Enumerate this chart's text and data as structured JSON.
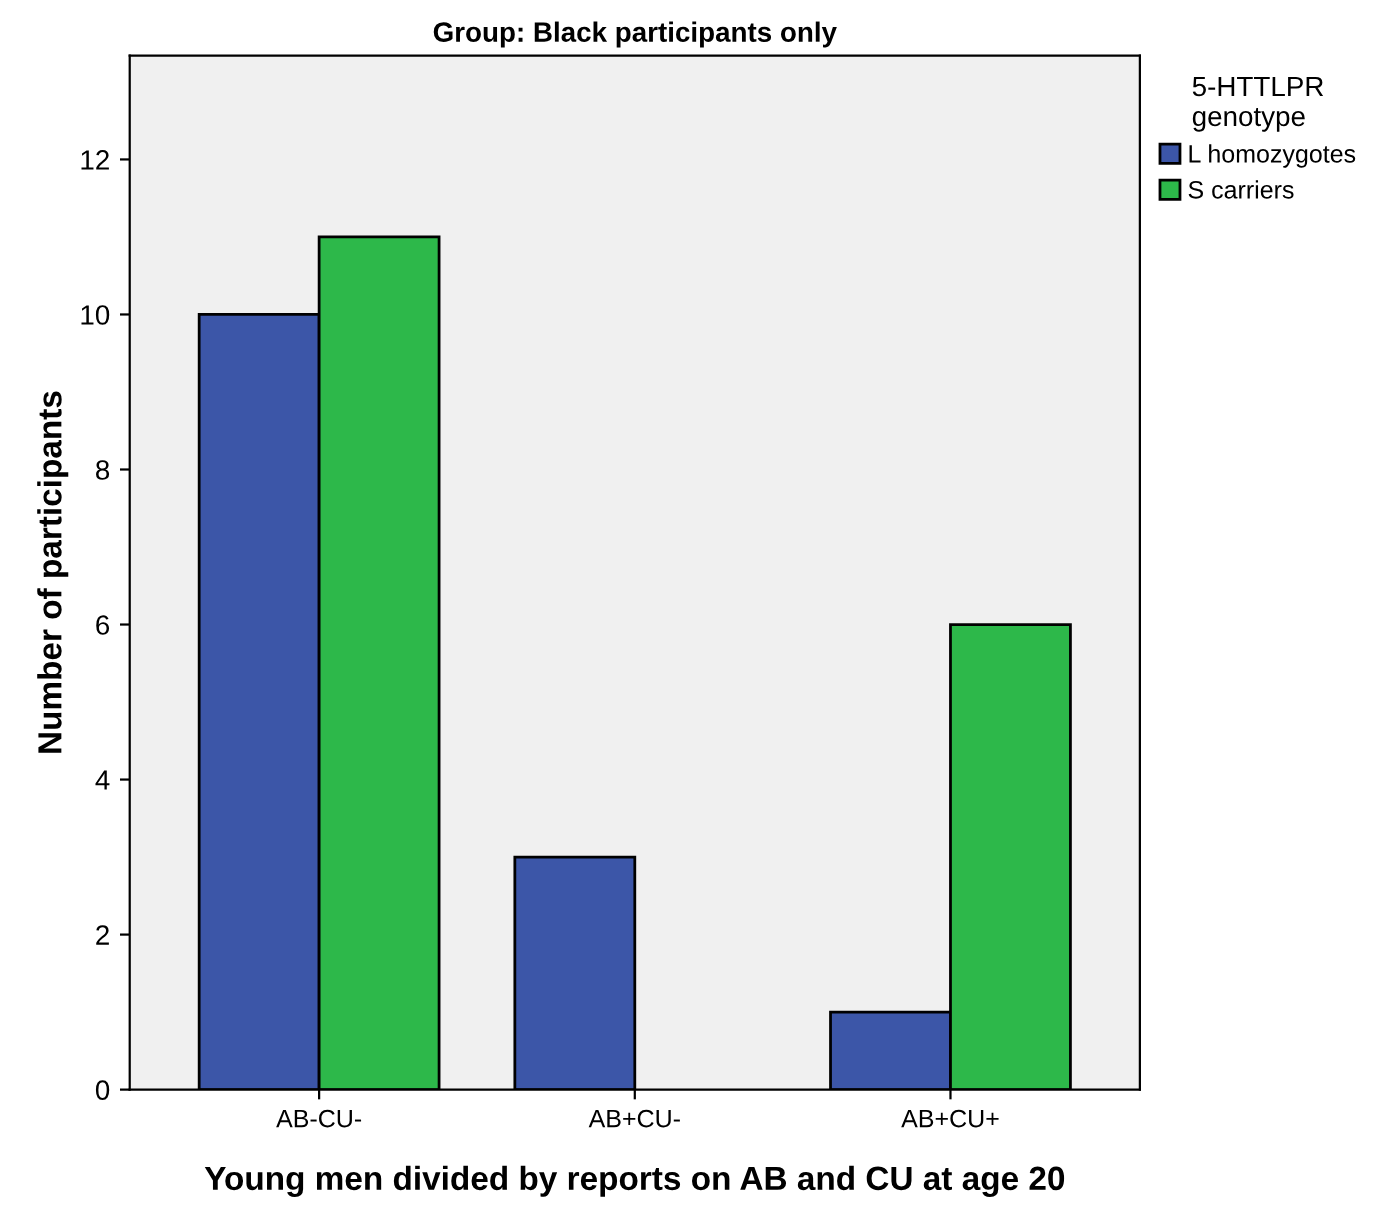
{
  "chart_data": {
    "type": "bar",
    "title": "Group: Black participants only",
    "xlabel": "Young men divided by reports on AB and CU at age 20",
    "ylabel": "Number of participants",
    "legend_title": "5-HTTLPR\ngenotype",
    "categories": [
      "AB-CU-",
      "AB+CU-",
      "AB+CU+"
    ],
    "series": [
      {
        "name": "L homozygotes",
        "color": "#3c56a8",
        "values": [
          10,
          3,
          1
        ]
      },
      {
        "name": "S carriers",
        "color": "#2db84a",
        "values": [
          11,
          null,
          6
        ]
      }
    ],
    "ylim": [
      0,
      13.34
    ],
    "yticks": [
      0,
      2,
      4,
      6,
      8,
      10,
      12
    ],
    "grid": false,
    "legend": "right"
  }
}
